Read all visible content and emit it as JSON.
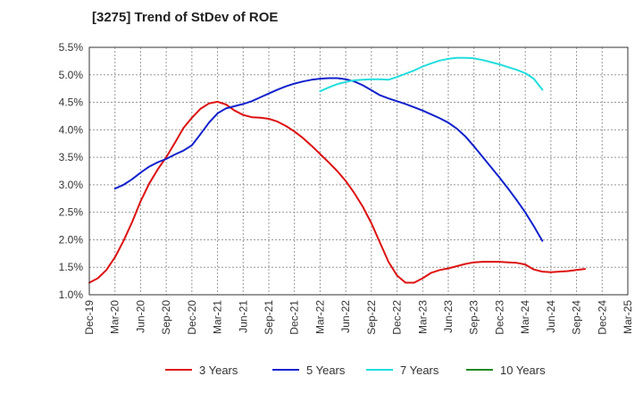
{
  "chart_data": {
    "type": "line",
    "title": "[3275]  Trend of StDev of ROE",
    "xlabel": "",
    "ylabel": "",
    "ylim": [
      1.0,
      5.5
    ],
    "x_tick_labels": [
      "Dec-19",
      "Mar-20",
      "Jun-20",
      "Sep-20",
      "Dec-20",
      "Mar-21",
      "Jun-21",
      "Sep-21",
      "Dec-21",
      "Mar-22",
      "Jun-22",
      "Sep-22",
      "Dec-22",
      "Mar-23",
      "Jun-23",
      "Sep-23",
      "Dec-23",
      "Mar-24",
      "Jun-24",
      "Sep-24",
      "Dec-24",
      "Mar-25"
    ],
    "y_tick_labels": [
      "1.0%",
      "1.5%",
      "2.0%",
      "2.5%",
      "3.0%",
      "3.5%",
      "4.0%",
      "4.5%",
      "5.0%",
      "5.5%"
    ],
    "y_ticks": [
      1.0,
      1.5,
      2.0,
      2.5,
      3.0,
      3.5,
      4.0,
      4.5,
      5.0,
      5.5
    ],
    "grid": true,
    "legend_position": "bottom",
    "series": [
      {
        "name": "3 Years",
        "color": "#dd1111",
        "points": [
          [
            "Dec-19",
            1.22
          ],
          [
            "Jan-20",
            1.3
          ],
          [
            "Feb-20",
            1.45
          ],
          [
            "Mar-20",
            1.68
          ],
          [
            "Apr-20",
            1.98
          ],
          [
            "May-20",
            2.32
          ],
          [
            "Jun-20",
            2.7
          ],
          [
            "Jul-20",
            3.02
          ],
          [
            "Aug-20",
            3.28
          ],
          [
            "Sep-20",
            3.5
          ],
          [
            "Oct-20",
            3.76
          ],
          [
            "Nov-20",
            4.03
          ],
          [
            "Dec-20",
            4.22
          ],
          [
            "Jan-21",
            4.38
          ],
          [
            "Feb-21",
            4.48
          ],
          [
            "Mar-21",
            4.51
          ],
          [
            "Apr-21",
            4.46
          ],
          [
            "May-21",
            4.35
          ],
          [
            "Jun-21",
            4.27
          ],
          [
            "Jul-21",
            4.23
          ],
          [
            "Aug-21",
            4.22
          ],
          [
            "Sep-21",
            4.2
          ],
          [
            "Oct-21",
            4.15
          ],
          [
            "Nov-21",
            4.07
          ],
          [
            "Dec-21",
            3.97
          ],
          [
            "Jan-22",
            3.85
          ],
          [
            "Feb-22",
            3.71
          ],
          [
            "Mar-22",
            3.56
          ],
          [
            "Apr-22",
            3.41
          ],
          [
            "May-22",
            3.25
          ],
          [
            "Jun-22",
            3.07
          ],
          [
            "Jul-22",
            2.85
          ],
          [
            "Aug-22",
            2.6
          ],
          [
            "Sep-22",
            2.3
          ],
          [
            "Oct-22",
            1.95
          ],
          [
            "Nov-22",
            1.6
          ],
          [
            "Dec-22",
            1.35
          ],
          [
            "Jan-23",
            1.22
          ],
          [
            "Feb-23",
            1.22
          ],
          [
            "Mar-23",
            1.3
          ],
          [
            "Apr-23",
            1.4
          ],
          [
            "May-23",
            1.45
          ],
          [
            "Jun-23",
            1.48
          ],
          [
            "Jul-23",
            1.52
          ],
          [
            "Aug-23",
            1.56
          ],
          [
            "Sep-23",
            1.59
          ],
          [
            "Oct-23",
            1.6
          ],
          [
            "Nov-23",
            1.6
          ],
          [
            "Dec-23",
            1.6
          ],
          [
            "Jan-24",
            1.59
          ],
          [
            "Feb-24",
            1.58
          ],
          [
            "Mar-24",
            1.55
          ],
          [
            "Apr-24",
            1.46
          ],
          [
            "May-24",
            1.42
          ],
          [
            "Jun-24",
            1.41
          ],
          [
            "Jul-24",
            1.42
          ],
          [
            "Aug-24",
            1.43
          ],
          [
            "Sep-24",
            1.45
          ],
          [
            "Oct-24",
            1.47
          ]
        ]
      },
      {
        "name": "5 Years",
        "color": "#1122cc",
        "points": [
          [
            "Mar-20",
            2.93
          ],
          [
            "Apr-20",
            3.0
          ],
          [
            "May-20",
            3.1
          ],
          [
            "Jun-20",
            3.22
          ],
          [
            "Jul-20",
            3.33
          ],
          [
            "Aug-20",
            3.41
          ],
          [
            "Sep-20",
            3.47
          ],
          [
            "Oct-20",
            3.55
          ],
          [
            "Nov-20",
            3.62
          ],
          [
            "Dec-20",
            3.72
          ],
          [
            "Jan-21",
            3.92
          ],
          [
            "Feb-21",
            4.13
          ],
          [
            "Mar-21",
            4.3
          ],
          [
            "Apr-21",
            4.39
          ],
          [
            "May-21",
            4.43
          ],
          [
            "Jun-21",
            4.47
          ],
          [
            "Jul-21",
            4.52
          ],
          [
            "Aug-21",
            4.59
          ],
          [
            "Sep-21",
            4.66
          ],
          [
            "Oct-21",
            4.73
          ],
          [
            "Nov-21",
            4.79
          ],
          [
            "Dec-21",
            4.84
          ],
          [
            "Jan-22",
            4.88
          ],
          [
            "Feb-22",
            4.91
          ],
          [
            "Mar-22",
            4.93
          ],
          [
            "Apr-22",
            4.94
          ],
          [
            "May-22",
            4.94
          ],
          [
            "Jun-22",
            4.92
          ],
          [
            "Jul-22",
            4.88
          ],
          [
            "Aug-22",
            4.81
          ],
          [
            "Sep-22",
            4.72
          ],
          [
            "Oct-22",
            4.63
          ],
          [
            "Nov-22",
            4.57
          ],
          [
            "Dec-22",
            4.52
          ],
          [
            "Jan-23",
            4.47
          ],
          [
            "Feb-23",
            4.41
          ],
          [
            "Mar-23",
            4.35
          ],
          [
            "Apr-23",
            4.28
          ],
          [
            "May-23",
            4.21
          ],
          [
            "Jun-23",
            4.13
          ],
          [
            "Jul-23",
            4.02
          ],
          [
            "Aug-23",
            3.88
          ],
          [
            "Sep-23",
            3.7
          ],
          [
            "Oct-23",
            3.51
          ],
          [
            "Nov-23",
            3.32
          ],
          [
            "Dec-23",
            3.13
          ],
          [
            "Jan-24",
            2.93
          ],
          [
            "Feb-24",
            2.72
          ],
          [
            "Mar-24",
            2.5
          ],
          [
            "Apr-24",
            2.25
          ],
          [
            "May-24",
            1.98
          ]
        ]
      },
      {
        "name": "7 Years",
        "color": "#22dddd",
        "points": [
          [
            "Mar-22",
            4.7
          ],
          [
            "Apr-22",
            4.77
          ],
          [
            "May-22",
            4.83
          ],
          [
            "Jun-22",
            4.87
          ],
          [
            "Jul-22",
            4.9
          ],
          [
            "Aug-22",
            4.91
          ],
          [
            "Sep-22",
            4.92
          ],
          [
            "Oct-22",
            4.92
          ],
          [
            "Nov-22",
            4.91
          ],
          [
            "Dec-22",
            4.96
          ],
          [
            "Jan-23",
            5.02
          ],
          [
            "Feb-23",
            5.08
          ],
          [
            "Mar-23",
            5.15
          ],
          [
            "Apr-23",
            5.21
          ],
          [
            "May-23",
            5.26
          ],
          [
            "Jun-23",
            5.29
          ],
          [
            "Jul-23",
            5.31
          ],
          [
            "Aug-23",
            5.31
          ],
          [
            "Sep-23",
            5.3
          ],
          [
            "Oct-23",
            5.27
          ],
          [
            "Nov-23",
            5.23
          ],
          [
            "Dec-23",
            5.19
          ],
          [
            "Jan-24",
            5.14
          ],
          [
            "Feb-24",
            5.09
          ],
          [
            "Mar-24",
            5.03
          ],
          [
            "Apr-24",
            4.93
          ],
          [
            "May-24",
            4.73
          ]
        ]
      },
      {
        "name": "10 Years",
        "color": "#228822",
        "points": []
      }
    ]
  }
}
